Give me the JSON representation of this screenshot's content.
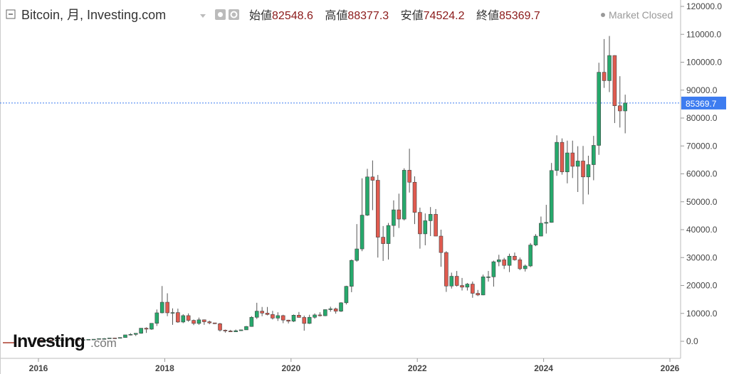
{
  "header": {
    "title": "Bitcoin, 月, Investing.com",
    "ohlc": [
      {
        "label": "始値",
        "value": "82548.6"
      },
      {
        "label": "高値",
        "value": "88377.3"
      },
      {
        "label": "安値",
        "value": "74524.2"
      },
      {
        "label": "終値",
        "value": "85369.7"
      }
    ],
    "status": "Market Closed"
  },
  "logo": {
    "main": "Investing",
    "suffix": ".com"
  },
  "colors": {
    "up": "#26a96c",
    "down": "#e05a4f",
    "price_line": "#3d7cf0"
  },
  "chart_data": {
    "type": "candlestick",
    "interval": "monthly",
    "instrument": "Bitcoin",
    "start": "2016-01",
    "y_ticks": [
      "0.0",
      "10000.0",
      "20000.0",
      "30000.0",
      "40000.0",
      "50000.0",
      "60000.0",
      "70000.0",
      "80000.0",
      "90000.0",
      "100000.0",
      "110000.0",
      "120000.0"
    ],
    "x_ticks": [
      "2016",
      "2018",
      "2020",
      "2022",
      "2024",
      "2026"
    ],
    "ylim": [
      -3000,
      122000
    ],
    "last_price": "85369.7",
    "last_price_value": 85369.7,
    "candles": [
      [
        430,
        440,
        360,
        370
      ],
      [
        370,
        440,
        370,
        436
      ],
      [
        436,
        440,
        400,
        416
      ],
      [
        416,
        460,
        410,
        448
      ],
      [
        448,
        550,
        440,
        530
      ],
      [
        530,
        780,
        520,
        673
      ],
      [
        673,
        770,
        610,
        624
      ],
      [
        624,
        630,
        480,
        575
      ],
      [
        575,
        620,
        580,
        608
      ],
      [
        608,
        740,
        600,
        700
      ],
      [
        700,
        750,
        690,
        743
      ],
      [
        743,
        970,
        740,
        960
      ],
      [
        960,
        1150,
        750,
        965
      ],
      [
        965,
        1200,
        930,
        1190
      ],
      [
        1190,
        1290,
        890,
        1080
      ],
      [
        1080,
        1350,
        1060,
        1350
      ],
      [
        1350,
        2200,
        1350,
        2300
      ],
      [
        2300,
        2900,
        2100,
        2480
      ],
      [
        2480,
        2900,
        1900,
        2870
      ],
      [
        2870,
        4700,
        2700,
        4700
      ],
      [
        4700,
        5000,
        3000,
        4350
      ],
      [
        4350,
        6400,
        4100,
        6450
      ],
      [
        6450,
        11400,
        5500,
        10200
      ],
      [
        10200,
        19800,
        10000,
        14000
      ],
      [
        14000,
        17200,
        9000,
        10200
      ],
      [
        10200,
        11800,
        5900,
        10300
      ],
      [
        10300,
        11700,
        6600,
        6900
      ],
      [
        6900,
        9700,
        6500,
        9200
      ],
      [
        9200,
        10000,
        7000,
        7500
      ],
      [
        7500,
        7800,
        5800,
        6400
      ],
      [
        6400,
        8500,
        5900,
        7700
      ],
      [
        7700,
        7800,
        5900,
        7000
      ],
      [
        7000,
        7400,
        6100,
        6600
      ],
      [
        6600,
        6600,
        6200,
        6300
      ],
      [
        6300,
        6600,
        3500,
        4000
      ],
      [
        4000,
        4200,
        3100,
        3700
      ],
      [
        3700,
        4100,
        3300,
        3400
      ],
      [
        3400,
        4200,
        3400,
        3800
      ],
      [
        3800,
        4100,
        3700,
        4100
      ],
      [
        4100,
        5500,
        4100,
        5300
      ],
      [
        5300,
        9000,
        5200,
        8600
      ],
      [
        8600,
        13800,
        8000,
        10800
      ],
      [
        10800,
        12300,
        9000,
        10100
      ],
      [
        10100,
        12300,
        9300,
        9600
      ],
      [
        9600,
        10900,
        7800,
        8300
      ],
      [
        8300,
        10400,
        7300,
        9200
      ],
      [
        9200,
        9500,
        6500,
        7600
      ],
      [
        7600,
        7700,
        6400,
        7200
      ],
      [
        7200,
        9600,
        6900,
        9350
      ],
      [
        9350,
        10500,
        8500,
        8550
      ],
      [
        8550,
        9200,
        3800,
        6400
      ],
      [
        6400,
        9500,
        6200,
        8600
      ],
      [
        8600,
        10000,
        8100,
        9450
      ],
      [
        9450,
        10400,
        8900,
        9150
      ],
      [
        9150,
        11400,
        9000,
        11350
      ],
      [
        11350,
        12400,
        10600,
        11650
      ],
      [
        11650,
        12050,
        9900,
        10780
      ],
      [
        10780,
        14000,
        10500,
        13800
      ],
      [
        13800,
        19900,
        13200,
        19700
      ],
      [
        19700,
        29300,
        17600,
        29000
      ],
      [
        29000,
        42000,
        28500,
        33100
      ],
      [
        33100,
        58400,
        32300,
        45200
      ],
      [
        45200,
        61800,
        44900,
        58900
      ],
      [
        58900,
        64800,
        47000,
        57700
      ],
      [
        57700,
        59600,
        30000,
        37300
      ],
      [
        37300,
        41300,
        28800,
        35000
      ],
      [
        35000,
        42400,
        29300,
        41500
      ],
      [
        41500,
        50500,
        37400,
        47100
      ],
      [
        47100,
        52900,
        40600,
        43800
      ],
      [
        43800,
        62000,
        43300,
        61300
      ],
      [
        61300,
        69000,
        53300,
        57000
      ],
      [
        57000,
        59100,
        42000,
        46200
      ],
      [
        46200,
        47900,
        33200,
        38500
      ],
      [
        38500,
        45800,
        34400,
        43200
      ],
      [
        43200,
        48100,
        37700,
        45500
      ],
      [
        45500,
        47400,
        37700,
        37700
      ],
      [
        37700,
        40000,
        26700,
        31800
      ],
      [
        31800,
        32300,
        17700,
        19800
      ],
      [
        19800,
        24600,
        18900,
        23300
      ],
      [
        23300,
        25200,
        19600,
        20000
      ],
      [
        20000,
        22700,
        18200,
        19400
      ],
      [
        19400,
        20900,
        18200,
        20500
      ],
      [
        20500,
        21400,
        15600,
        17200
      ],
      [
        17200,
        18400,
        16200,
        16600
      ],
      [
        16600,
        23900,
        16500,
        23100
      ],
      [
        23100,
        25200,
        21400,
        23100
      ],
      [
        23100,
        28900,
        19600,
        28500
      ],
      [
        28500,
        31000,
        26900,
        29200
      ],
      [
        29200,
        29900,
        25900,
        27200
      ],
      [
        27200,
        31400,
        24800,
        30500
      ],
      [
        30500,
        31800,
        28900,
        29200
      ],
      [
        29200,
        30000,
        25500,
        26000
      ],
      [
        26000,
        27500,
        25000,
        27000
      ],
      [
        27000,
        35200,
        26600,
        34500
      ],
      [
        34500,
        38400,
        34100,
        37700
      ],
      [
        37700,
        44700,
        37600,
        42300
      ],
      [
        42300,
        48900,
        38600,
        42600
      ],
      [
        42600,
        63900,
        42500,
        61200
      ],
      [
        61200,
        73800,
        59300,
        71300
      ],
      [
        71300,
        72700,
        59700,
        60700
      ],
      [
        60700,
        71900,
        56600,
        67500
      ],
      [
        67500,
        71900,
        58500,
        62700
      ],
      [
        62700,
        69900,
        53500,
        64600
      ],
      [
        64600,
        70000,
        49100,
        58900
      ],
      [
        58900,
        66500,
        52600,
        63300
      ],
      [
        63300,
        73600,
        57700,
        70200
      ],
      [
        70200,
        99800,
        66800,
        96400
      ],
      [
        96400,
        108300,
        90800,
        93400
      ],
      [
        93400,
        109400,
        89300,
        102400
      ],
      [
        102400,
        102500,
        78200,
        84400
      ],
      [
        84400,
        95000,
        76600,
        82550
      ],
      [
        82550,
        88377.3,
        74524.2,
        85369.7
      ]
    ]
  }
}
